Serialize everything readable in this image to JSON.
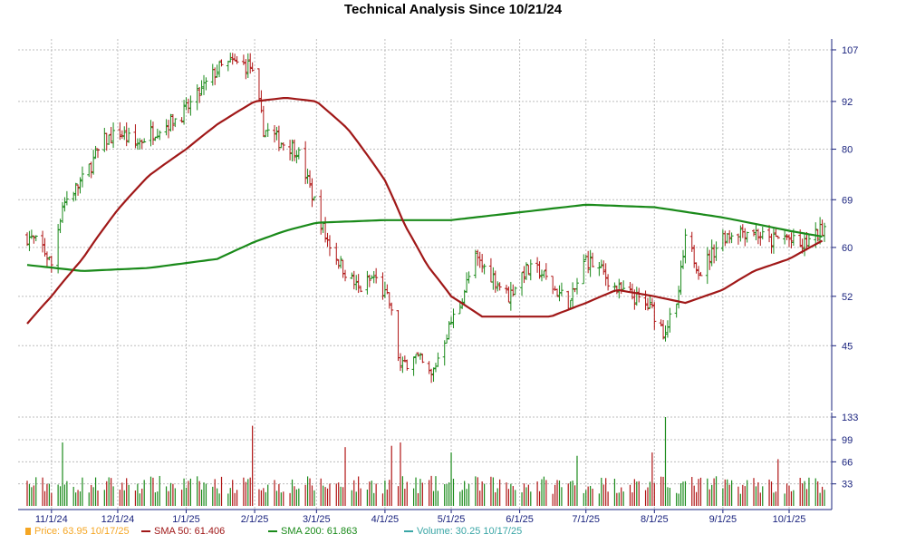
{
  "chart_data": {
    "type": "candlestick",
    "title": "Technical Analysis Since 10/21/24",
    "price_axis": {
      "ticks": [
        45,
        52,
        60,
        69,
        80,
        92,
        107
      ],
      "scale": "log",
      "range": [
        38,
        109
      ],
      "position": "right"
    },
    "volume_axis": {
      "ticks": [
        33,
        66,
        99,
        133
      ],
      "range": [
        0,
        133
      ],
      "position": "right"
    },
    "x_ticks": [
      {
        "label": "11/1/24",
        "date": "2024-11-01"
      },
      {
        "label": "12/1/24",
        "date": "2024-12-01"
      },
      {
        "label": "1/1/25",
        "date": "2025-01-01"
      },
      {
        "label": "2/1/25",
        "date": "2025-02-01"
      },
      {
        "label": "3/1/25",
        "date": "2025-03-01"
      },
      {
        "label": "4/1/25",
        "date": "2025-04-01"
      },
      {
        "label": "5/1/25",
        "date": "2025-05-01"
      },
      {
        "label": "6/1/25",
        "date": "2025-06-01"
      },
      {
        "label": "7/1/25",
        "date": "2025-07-01"
      },
      {
        "label": "8/1/25",
        "date": "2025-08-01"
      },
      {
        "label": "9/1/25",
        "date": "2025-09-01"
      },
      {
        "label": "10/1/25",
        "date": "2025-10-01"
      }
    ],
    "x_range": [
      "2024-10-21",
      "2025-10-17"
    ],
    "grid": true,
    "price_keypoints": [
      [
        "2024-10-21",
        62
      ],
      [
        "2024-10-28",
        60
      ],
      [
        "2024-11-01",
        57
      ],
      [
        "2024-11-06",
        68
      ],
      [
        "2024-11-15",
        73
      ],
      [
        "2024-11-25",
        82
      ],
      [
        "2024-12-02",
        84
      ],
      [
        "2024-12-09",
        81
      ],
      [
        "2024-12-16",
        84
      ],
      [
        "2024-12-23",
        86
      ],
      [
        "2024-12-31",
        89
      ],
      [
        "2025-01-08",
        95
      ],
      [
        "2025-01-15",
        101
      ],
      [
        "2025-01-22",
        103
      ],
      [
        "2025-01-30",
        102
      ],
      [
        "2025-02-05",
        85
      ],
      [
        "2025-02-12",
        82
      ],
      [
        "2025-02-20",
        80
      ],
      [
        "2025-02-27",
        70
      ],
      [
        "2025-03-05",
        62
      ],
      [
        "2025-03-12",
        57
      ],
      [
        "2025-03-20",
        53
      ],
      [
        "2025-03-27",
        55
      ],
      [
        "2025-04-03",
        51
      ],
      [
        "2025-04-08",
        42
      ],
      [
        "2025-04-14",
        44
      ],
      [
        "2025-04-22",
        41
      ],
      [
        "2025-04-28",
        46
      ],
      [
        "2025-05-05",
        51
      ],
      [
        "2025-05-12",
        58
      ],
      [
        "2025-05-20",
        55
      ],
      [
        "2025-05-27",
        52
      ],
      [
        "2025-06-03",
        56
      ],
      [
        "2025-06-10",
        56
      ],
      [
        "2025-06-17",
        53
      ],
      [
        "2025-06-24",
        51
      ],
      [
        "2025-07-01",
        58
      ],
      [
        "2025-07-08",
        56
      ],
      [
        "2025-07-15",
        53
      ],
      [
        "2025-07-22",
        52
      ],
      [
        "2025-07-31",
        50
      ],
      [
        "2025-08-05",
        47
      ],
      [
        "2025-08-11",
        50
      ],
      [
        "2025-08-15",
        61
      ],
      [
        "2025-08-22",
        56
      ],
      [
        "2025-09-01",
        62
      ],
      [
        "2025-09-08",
        63
      ],
      [
        "2025-09-15",
        63
      ],
      [
        "2025-09-22",
        61
      ],
      [
        "2025-09-29",
        62
      ],
      [
        "2025-10-06",
        60
      ],
      [
        "2025-10-13",
        62
      ],
      [
        "2025-10-17",
        64
      ]
    ],
    "sma50_keypoints": [
      [
        "2024-10-21",
        48
      ],
      [
        "2024-11-01",
        52
      ],
      [
        "2024-11-15",
        58
      ],
      [
        "2024-12-01",
        67
      ],
      [
        "2024-12-15",
        74
      ],
      [
        "2025-01-01",
        80
      ],
      [
        "2025-01-15",
        86
      ],
      [
        "2025-02-01",
        92
      ],
      [
        "2025-02-15",
        93
      ],
      [
        "2025-03-01",
        92
      ],
      [
        "2025-03-15",
        85
      ],
      [
        "2025-04-01",
        73
      ],
      [
        "2025-04-10",
        64
      ],
      [
        "2025-04-20",
        57
      ],
      [
        "2025-05-01",
        52
      ],
      [
        "2025-05-15",
        49
      ],
      [
        "2025-06-01",
        49
      ],
      [
        "2025-06-15",
        49
      ],
      [
        "2025-07-01",
        51
      ],
      [
        "2025-07-15",
        53
      ],
      [
        "2025-08-01",
        52
      ],
      [
        "2025-08-15",
        51
      ],
      [
        "2025-09-01",
        53
      ],
      [
        "2025-09-15",
        56
      ],
      [
        "2025-10-01",
        58
      ],
      [
        "2025-10-17",
        61.406
      ]
    ],
    "sma200_keypoints": [
      [
        "2024-10-21",
        57
      ],
      [
        "2024-11-15",
        56
      ],
      [
        "2024-12-15",
        56.5
      ],
      [
        "2025-01-15",
        58
      ],
      [
        "2025-02-01",
        61
      ],
      [
        "2025-02-15",
        63
      ],
      [
        "2025-03-01",
        64.5
      ],
      [
        "2025-04-01",
        65
      ],
      [
        "2025-05-01",
        65
      ],
      [
        "2025-06-01",
        66.5
      ],
      [
        "2025-07-01",
        68
      ],
      [
        "2025-08-01",
        67.5
      ],
      [
        "2025-09-01",
        65.5
      ],
      [
        "2025-10-01",
        63
      ],
      [
        "2025-10-17",
        61.863
      ]
    ],
    "volume_spikes": [
      [
        "2024-11-06",
        95
      ],
      [
        "2025-01-31",
        120
      ],
      [
        "2025-03-14",
        88
      ],
      [
        "2025-04-04",
        90
      ],
      [
        "2025-04-08",
        95
      ],
      [
        "2025-05-01",
        80
      ],
      [
        "2025-06-27",
        75
      ],
      [
        "2025-07-31",
        80
      ],
      [
        "2025-08-06",
        133
      ],
      [
        "2025-09-26",
        70
      ]
    ],
    "volume_base": 30,
    "legend": [
      {
        "label": "Price: 63.95  10/17/25",
        "color": "#f5a623",
        "symbol": "square"
      },
      {
        "label": "SMA 50: 61.406",
        "color": "#a01818",
        "symbol": "line"
      },
      {
        "label": "SMA 200: 61.863",
        "color": "#1a8a1a",
        "symbol": "line"
      },
      {
        "label": "Volume: 30.25  10/17/25",
        "color": "#3aa6a6",
        "symbol": "line"
      }
    ]
  }
}
